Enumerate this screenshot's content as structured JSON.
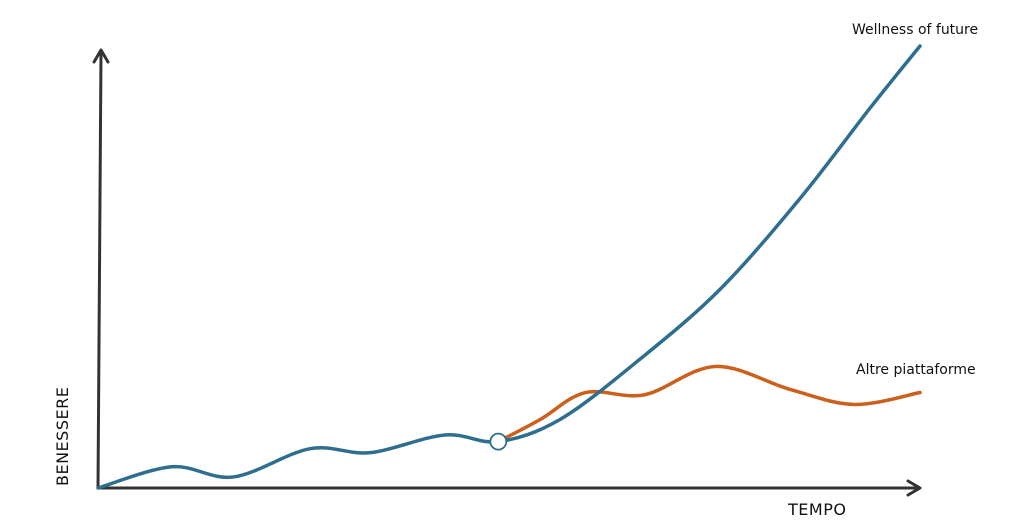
{
  "chart_data": {
    "type": "line",
    "title": "",
    "xlabel": "TEMPO",
    "ylabel": "BENESSERE",
    "xlim": [
      0,
      100
    ],
    "ylim": [
      0,
      100
    ],
    "grid": false,
    "ticks": false,
    "legend": "inline labels at line ends",
    "series": [
      {
        "name": "Wellness of future",
        "color": "#2e6e8e",
        "points": [
          [
            0,
            0
          ],
          [
            9,
            4.8
          ],
          [
            16.5,
            2.5
          ],
          [
            25.8,
            8.9
          ],
          [
            33.1,
            8.0
          ],
          [
            42.2,
            12.0
          ],
          [
            48.7,
            10.5
          ],
          [
            56.2,
            15.5
          ],
          [
            65.9,
            29.1
          ],
          [
            75.7,
            45
          ],
          [
            85.4,
            65.5
          ],
          [
            93.9,
            85.9
          ],
          [
            100,
            100
          ]
        ]
      },
      {
        "name": "Altre piattaforme",
        "color": "#cc5f1c",
        "points": [
          [
            48.7,
            10.5
          ],
          [
            53.8,
            15.5
          ],
          [
            59.3,
            21.6
          ],
          [
            66.5,
            21.1
          ],
          [
            75.1,
            27.5
          ],
          [
            84.2,
            22.3
          ],
          [
            92,
            18.9
          ],
          [
            100,
            21.6
          ]
        ]
      }
    ],
    "annotations": [
      {
        "type": "divergence-marker",
        "at": [
          48.7,
          10.5
        ]
      }
    ]
  }
}
